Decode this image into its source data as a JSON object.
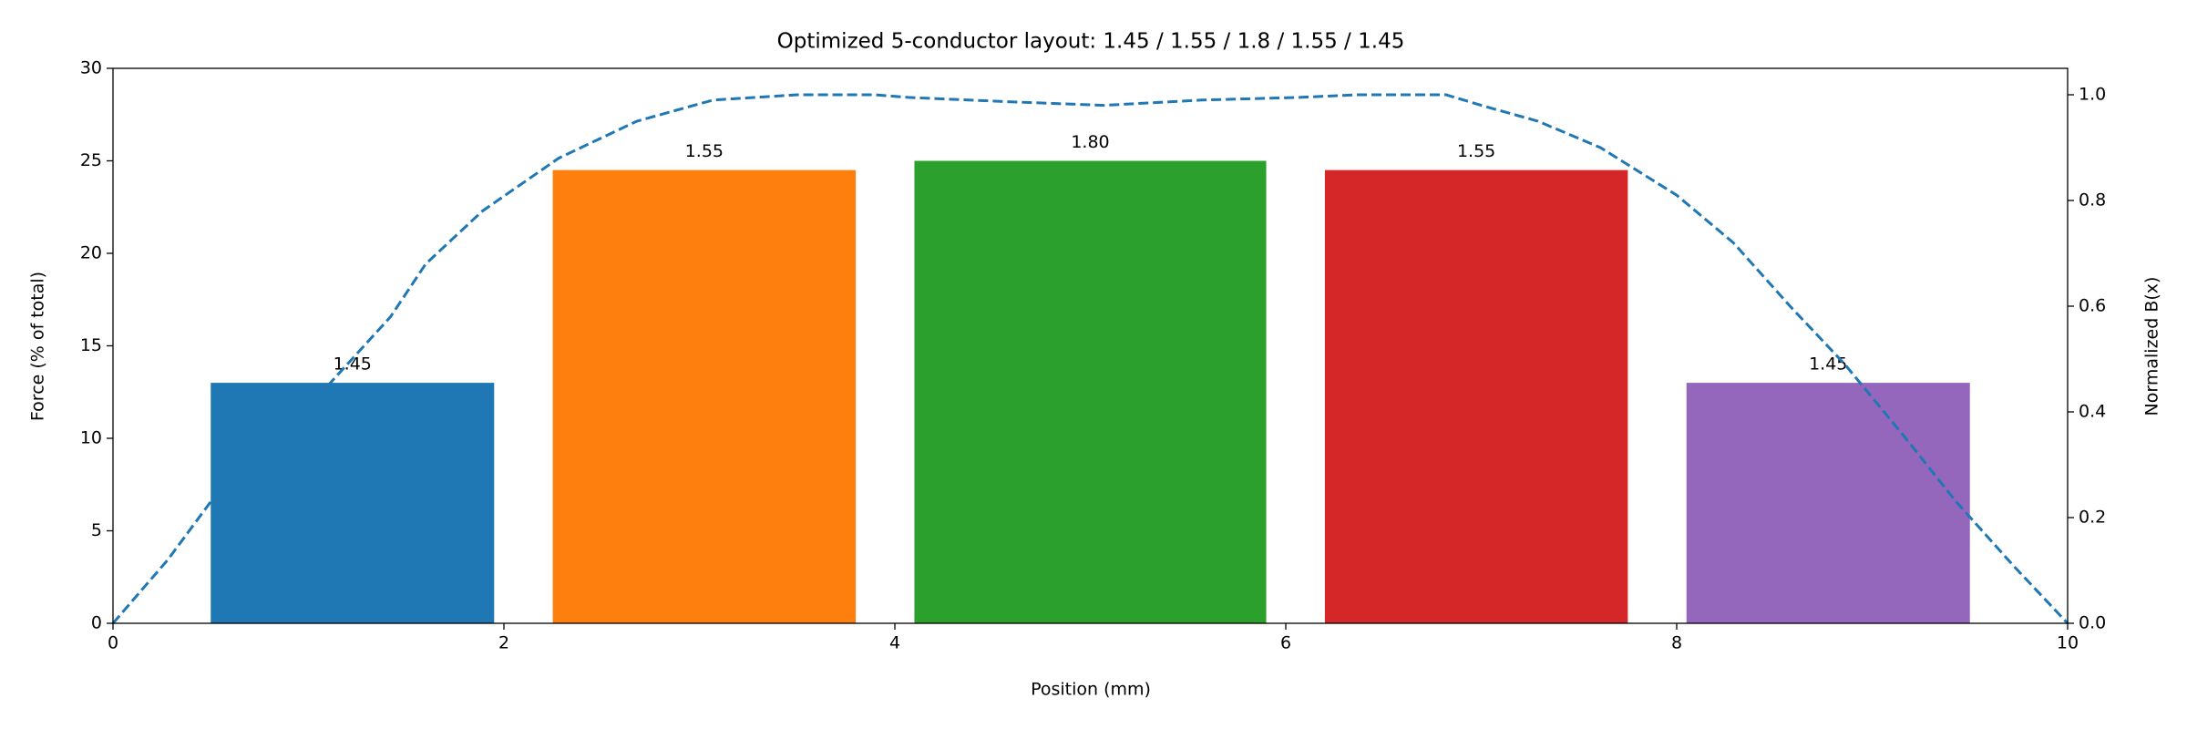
{
  "chart_data": {
    "type": "bar",
    "title": "Optimized 5-conductor layout: 1.45 / 1.55 / 1.8 / 1.55 / 1.45",
    "xlabel": "Position (mm)",
    "ylabel": "Force (% of total)",
    "y2label": "Normalized B(x)",
    "xlim": [
      0,
      10
    ],
    "xticks": [
      0,
      2,
      4,
      6,
      8,
      10
    ],
    "ylim": [
      0,
      30
    ],
    "yticks": [
      0,
      5,
      10,
      15,
      20,
      25,
      30
    ],
    "y2lim": [
      0,
      1.05
    ],
    "y2ticks": [
      {
        "value": 0,
        "label": "0.0"
      },
      {
        "value": 0.2,
        "label": "0.2"
      },
      {
        "value": 0.4,
        "label": "0.4"
      },
      {
        "value": 0.6,
        "label": "0.6"
      },
      {
        "value": 0.8,
        "label": "0.8"
      },
      {
        "value": 1,
        "label": "1.0"
      }
    ],
    "bars": {
      "x_left": [
        0.5,
        2.25,
        4.1,
        6.2,
        8.05
      ],
      "widths": [
        1.45,
        1.55,
        1.8,
        1.55,
        1.45
      ],
      "width_labels": [
        "1.45",
        "1.55",
        "1.80",
        "1.55",
        "1.45"
      ],
      "values": [
        13,
        24.5,
        25,
        24.5,
        13
      ],
      "colors": [
        "#1f77b4",
        "#ff7f0e",
        "#2ca02c",
        "#d62728",
        "#9467bd"
      ]
    },
    "line": {
      "axis": "y2",
      "color": "#1f77b4",
      "style": "dashed",
      "x": [
        0,
        0.28,
        0.5,
        1.1,
        1.42,
        1.6,
        1.89,
        2.28,
        2.68,
        3.07,
        3.5,
        3.9,
        4.07,
        4.57,
        5.07,
        5.57,
        6.07,
        6.36,
        6.82,
        7.0,
        7.29,
        7.61,
        8.0,
        8.29,
        8.58,
        8.86,
        9.15,
        9.43,
        9.72,
        10
      ],
      "values": [
        0,
        0.12,
        0.23,
        0.45,
        0.58,
        0.68,
        0.78,
        0.88,
        0.95,
        0.99,
        1.0,
        1.0,
        0.995,
        0.987,
        0.98,
        0.99,
        0.995,
        1.0,
        1.0,
        0.98,
        0.95,
        0.9,
        0.81,
        0.72,
        0.6,
        0.49,
        0.36,
        0.23,
        0.11,
        0
      ]
    }
  }
}
